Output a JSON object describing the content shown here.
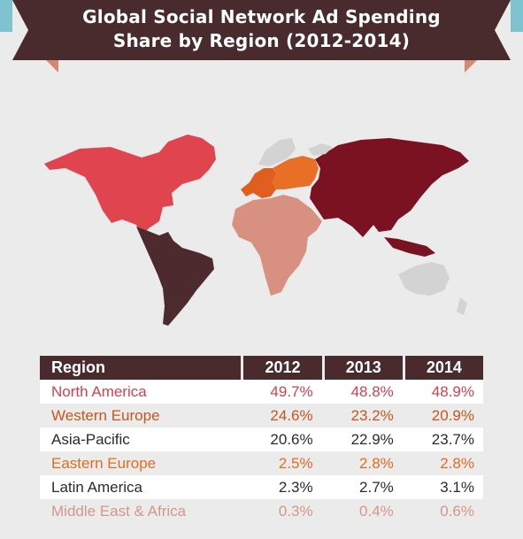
{
  "title": {
    "line1": "Global Social Network Ad Spending",
    "line2": "Share by Region (2012-2014)"
  },
  "colors": {
    "banner": "#4a2b2d",
    "accent_teal": "#7ec3cf",
    "north_america": "#e0444f",
    "western_europe": "#e05f20",
    "asia_pacific": "#7a1222",
    "eastern_europe": "#e86f25",
    "latin_america": "#4d2a2d",
    "middle_east_africa": "#d89080",
    "other_land": "#d3d3d3"
  },
  "table": {
    "headers": [
      "Region",
      "2012",
      "2013",
      "2014"
    ],
    "rows": [
      {
        "region": "North America",
        "values": [
          "49.7%",
          "48.8%",
          "48.9%"
        ],
        "color": "#d63f4a"
      },
      {
        "region": "Western Europe",
        "values": [
          "24.6%",
          "23.2%",
          "20.9%"
        ],
        "color": "#c8561c"
      },
      {
        "region": "Asia-Pacific",
        "values": [
          "20.6%",
          "22.9%",
          "23.7%"
        ],
        "color": "#2b2b2b"
      },
      {
        "region": "Eastern Europe",
        "values": [
          "2.5%",
          "2.8%",
          "2.8%"
        ],
        "color": "#e06c22"
      },
      {
        "region": "Latin America",
        "values": [
          "2.3%",
          "2.7%",
          "3.1%"
        ],
        "color": "#2b2b2b"
      },
      {
        "region": "Middle East & Africa",
        "values": [
          "0.3%",
          "0.4%",
          "0.6%"
        ],
        "color": "#d4968a"
      }
    ]
  }
}
